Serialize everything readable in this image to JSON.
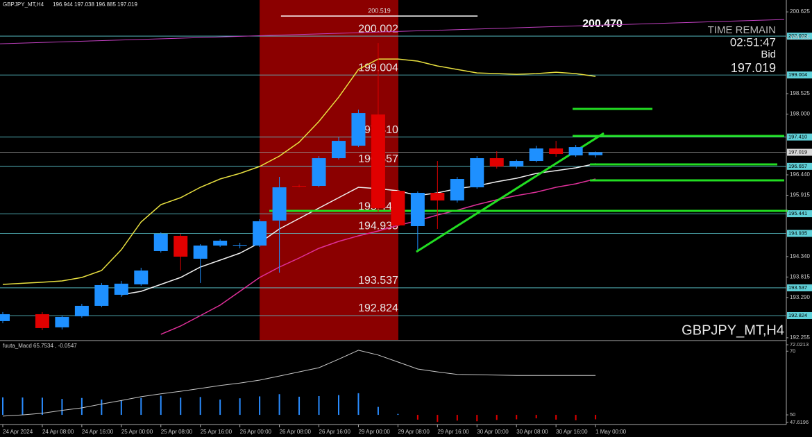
{
  "chart_data": {
    "type": "candlestick",
    "title": "GBPJPY_MT,H4",
    "watermark": "GBPJPY_MT,H4",
    "up_color": "#1e90ff",
    "down_color": "#e00000",
    "categories": [
      "24 Apr 2024",
      null,
      "24 Apr 08:00",
      null,
      "24 Apr 16:00",
      null,
      "25 Apr 00:00",
      null,
      "25 Apr 08:00",
      null,
      "25 Apr 16:00",
      null,
      "26 Apr 00:00",
      null,
      "26 Apr 08:00",
      null,
      "26 Apr 16:00",
      null,
      "29 Apr 00:00",
      null,
      "29 Apr 08:00",
      null,
      "29 Apr 16:00",
      null,
      "30 Apr 00:00",
      null,
      "30 Apr 08:00",
      null,
      "30 Apr 16:00",
      null,
      "1 May 00:00"
    ],
    "open": [
      192.682,
      null,
      192.86,
      192.522,
      192.807,
      193.074,
      193.359,
      193.626,
      194.481,
      194.873,
      194.285,
      194.623,
      194.623,
      194.623,
      195.264,
      196.155,
      196.155,
      196.867,
      197.188,
      197.989,
      196.03,
      195.122,
      195.977,
      195.781,
      196.119,
      196.867,
      196.653,
      196.796,
      197.117,
      196.938,
      196.944
    ],
    "high": [
      192.914,
      null,
      192.914,
      192.825,
      193.127,
      193.662,
      193.715,
      194.053,
      194.962,
      194.926,
      194.659,
      194.784,
      194.695,
      195.3,
      196.386,
      196.19,
      196.921,
      197.401,
      198.114,
      199.824,
      196.084,
      196.012,
      196.796,
      196.386,
      196.921,
      197.045,
      196.832,
      197.188,
      197.312,
      197.206,
      197.038
    ],
    "low": [
      192.629,
      null,
      192.451,
      192.468,
      192.771,
      193.038,
      193.305,
      193.59,
      194.445,
      193.982,
      193.662,
      194.588,
      194.552,
      194.588,
      193.929,
      196.119,
      196.119,
      196.832,
      197.152,
      195.496,
      195.051,
      194.516,
      195.051,
      195.727,
      196.084,
      196.6,
      196.6,
      196.76,
      196.903,
      196.903,
      196.885
    ],
    "close": [
      192.86,
      null,
      192.504,
      192.789,
      193.074,
      193.608,
      193.644,
      193.982,
      194.926,
      194.338,
      194.623,
      194.748,
      194.64,
      195.247,
      196.119,
      196.15,
      196.867,
      197.312,
      198.025,
      195.585,
      195.14,
      195.977,
      195.781,
      196.333,
      196.867,
      196.653,
      196.796,
      197.117,
      196.974,
      197.152,
      197.019
    ],
    "series": [
      {
        "color": "#e8e040",
        "values": [
          193.626,
          193.653,
          193.68,
          193.715,
          193.804,
          193.982,
          194.516,
          195.229,
          195.674,
          195.852,
          196.119,
          196.333,
          196.476,
          196.654,
          196.921,
          197.277,
          197.811,
          198.434,
          199.147,
          199.414,
          199.414,
          199.36,
          199.236,
          199.147,
          199.058,
          199.04,
          199.022,
          199.04,
          199.076,
          199.04,
          198.969
        ]
      },
      {
        "color": "#f0f0f0",
        "values": [
          null,
          null,
          null,
          null,
          null,
          null,
          193.359,
          193.448,
          193.626,
          193.804,
          194.071,
          194.249,
          194.427,
          194.695,
          195.051,
          195.318,
          195.585,
          195.852,
          196.119,
          196.084,
          196.03,
          195.905,
          195.977,
          196.084,
          196.155,
          196.262,
          196.351,
          196.476,
          196.547,
          196.618,
          196.725
        ]
      },
      {
        "color": "#e0309a",
        "values": [
          null,
          null,
          null,
          null,
          null,
          null,
          null,
          null,
          192.344,
          192.557,
          192.824,
          193.092,
          193.448,
          193.804,
          194.071,
          194.303,
          194.552,
          194.73,
          194.873,
          194.997,
          195.14,
          195.265,
          195.407,
          195.532,
          195.674,
          195.799,
          195.905,
          195.994,
          196.119,
          196.208,
          196.333
        ]
      }
    ],
    "trendlines": [
      {
        "color": "#c040c0",
        "width": 1,
        "points": [
          [
            -0.14,
            199.806
          ],
          [
            39.55,
            200.429
          ]
        ]
      },
      {
        "color": "#22dd22",
        "width": 3,
        "points": [
          [
            20.93,
            194.463
          ],
          [
            30.42,
            197.508
          ]
        ]
      },
      {
        "color": "#22dd22",
        "width": 3,
        "points": [
          [
            13.49,
            195.514
          ],
          [
            39.73,
            195.514
          ]
        ]
      },
      {
        "color": "#22dd22",
        "width": 3,
        "points": [
          [
            28.84,
            197.437
          ],
          [
            39.55,
            197.437
          ]
        ]
      },
      {
        "color": "#22dd22",
        "width": 3,
        "points": [
          [
            29.72,
            196.707
          ],
          [
            39.2,
            196.707
          ]
        ]
      },
      {
        "color": "#22dd22",
        "width": 3,
        "points": [
          [
            29.72,
            196.297
          ],
          [
            39.55,
            196.297
          ]
        ]
      },
      {
        "color": "#22dd22",
        "width": 3,
        "points": [
          [
            28.84,
            198.132
          ],
          [
            32.88,
            198.132
          ]
        ]
      }
    ],
    "highlight": {
      "color": "#8b0000",
      "x_range": [
        13.0,
        20.02
      ]
    },
    "levels": [
      200.002,
      199.004,
      {
        "value": 197.41,
        "label": "197.410"
      },
      196.657,
      195.441,
      194.935,
      193.537,
      192.824
    ],
    "level_color": "#5fd0d8",
    "marker_line": {
      "value": 200.519,
      "x_range": [
        14.08,
        24.03
      ]
    },
    "note": "200.470",
    "ylim": [
      192.2,
      200.93
    ],
    "yticks": [
      200.625,
      199.955,
      198.525,
      {
        "value": 198,
        "label": "198.000"
      },
      {
        "value": 196.44,
        "label": "196.440"
      },
      195.915,
      {
        "value": 194.34,
        "label": "194.340"
      },
      193.815,
      {
        "value": 193.29,
        "label": "193.290"
      },
      192.255
    ],
    "info": {
      "time_label": "TIME REMAIN",
      "time": "02:51:47",
      "bid_label": "Bid"
    },
    "indicator": {
      "type": "histogram",
      "title": "fuuta_Macd 65.7534 , -0.0547",
      "base": 50,
      "up_color": "#2a8cff",
      "down_color": "#e00000",
      "values": [
        55.5,
        55.45,
        55.4,
        55.0,
        55.3,
        54.8,
        54.5,
        55.3,
        56,
        55.4,
        55.6,
        54.8,
        55.2,
        55.8,
        56.5,
        55.7,
        55.9,
        56.2,
        56.8,
        52.5,
        50.3,
        48.5,
        47.8,
        48.2,
        48.0,
        48.4,
        48.6,
        48.9,
        48.5,
        48.3,
        48.6
      ],
      "signal": {
        "color": "#c8c8c8",
        "values": [
          49.6,
          50.0,
          50.5,
          51.4,
          52.2,
          53.4,
          54.5,
          55.7,
          56.6,
          57.4,
          58.3,
          59.2,
          60.0,
          60.9,
          62.2,
          63.5,
          64.8,
          67.5,
          70.3,
          68.8,
          66.6,
          64.4,
          63.5,
          62.7,
          62.6,
          62.5,
          62.4,
          62.4,
          62.4,
          62.4,
          62.4
        ]
      },
      "ylim": [
        47.6196,
        72.0213
      ],
      "yticks": [
        72.0213,
        70,
        50,
        47.6196
      ]
    }
  }
}
